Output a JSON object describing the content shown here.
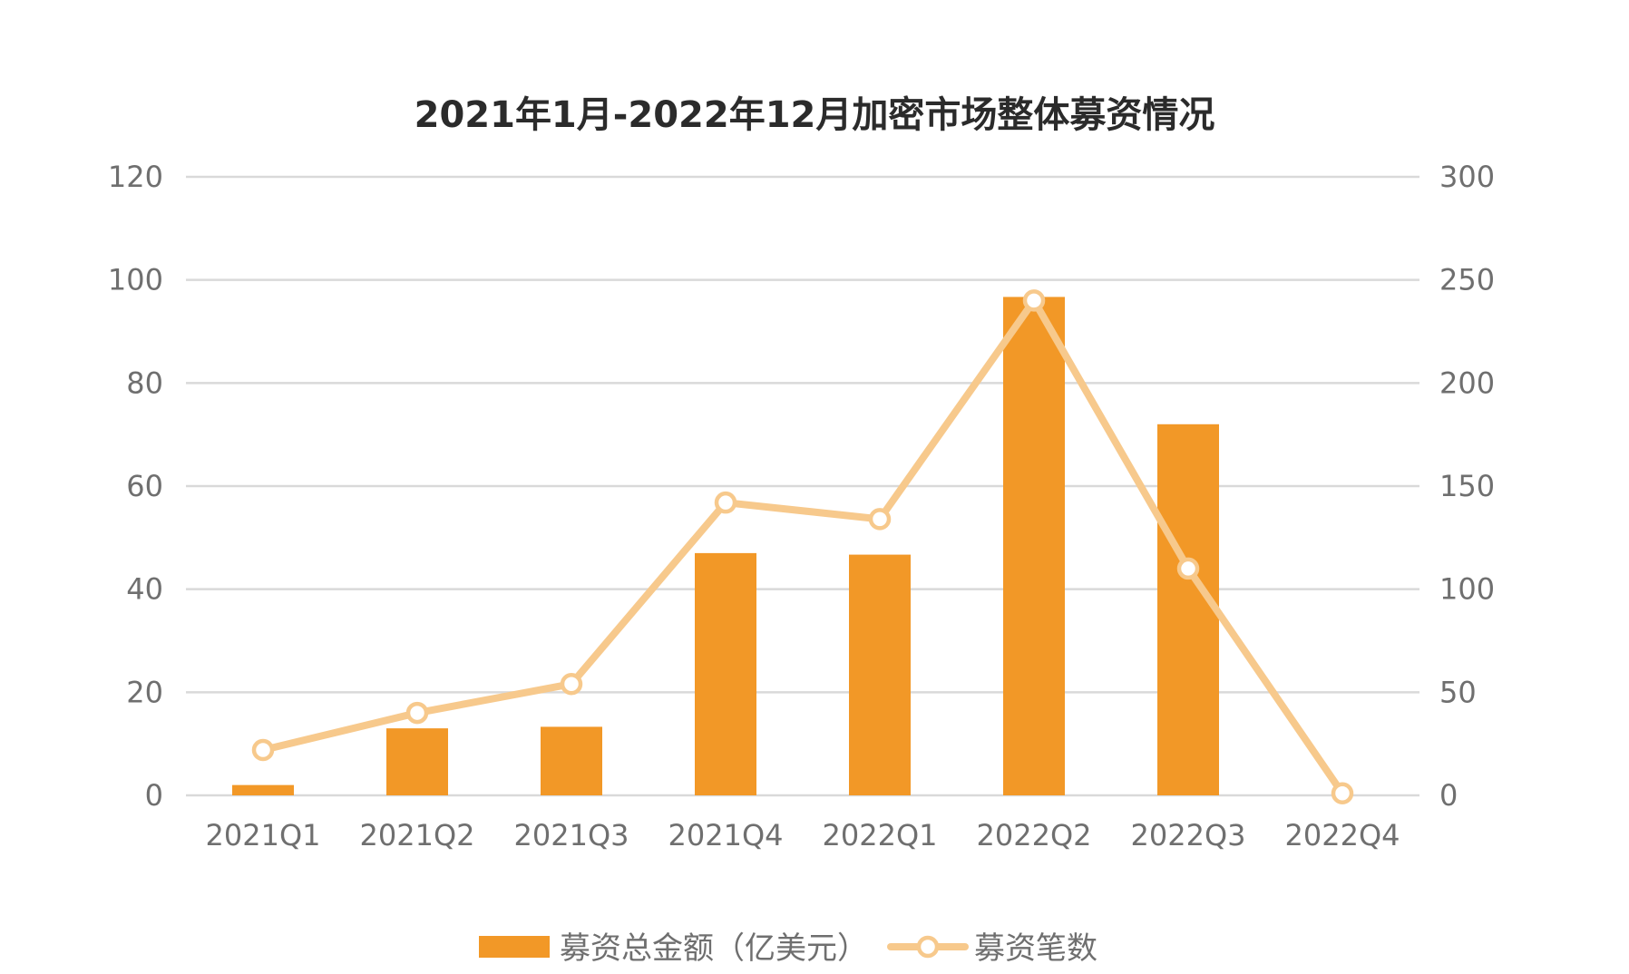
{
  "chart_data": {
    "type": "bar",
    "title": "2021年1月-2022年12月加密市场整体募资情况",
    "categories": [
      "2021Q1",
      "2021Q2",
      "2021Q3",
      "2021Q4",
      "2022Q1",
      "2022Q2",
      "2022Q3",
      "2022Q4"
    ],
    "series": [
      {
        "name": "募资总金额（亿美元）",
        "type": "bar",
        "axis": "left",
        "color": "#f29827",
        "values": [
          2,
          13,
          13.3,
          47,
          46.7,
          96.7,
          72,
          0
        ]
      },
      {
        "name": "募资笔数",
        "type": "line",
        "axis": "right",
        "color": "#f7c98c",
        "values": [
          22,
          40,
          54,
          142,
          134,
          240,
          110,
          1
        ]
      }
    ],
    "y_left": {
      "ylim": [
        0,
        120
      ],
      "ticks": [
        "0",
        "20",
        "40",
        "60",
        "80",
        "100",
        "120"
      ]
    },
    "y_right": {
      "ylim": [
        0,
        300
      ],
      "ticks": [
        "0",
        "50",
        "100",
        "150",
        "200",
        "250",
        "300"
      ]
    },
    "grid": true,
    "legend_position": "bottom-center"
  }
}
